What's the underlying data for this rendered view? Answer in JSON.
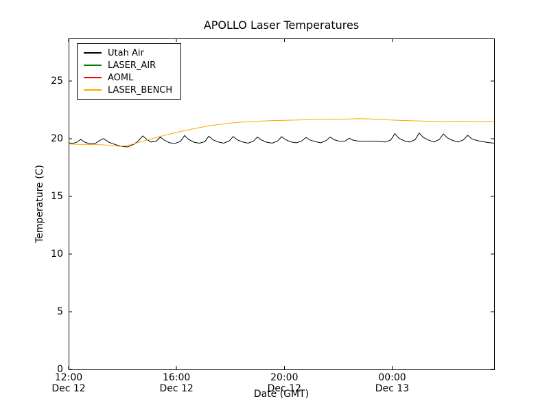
{
  "chart_data": {
    "type": "line",
    "title": "APOLLO Laser Temperatures",
    "xlabel": "Date (GMT)",
    "ylabel": "Temperature (C)",
    "x_unit": "hours since Dec 12 12:00 GMT",
    "xlim": [
      0,
      15.78
    ],
    "ylim": [
      0,
      28.7
    ],
    "grid": false,
    "legend_position": "upper left",
    "background_color": "#ffffff",
    "axes_color": "#000000",
    "y_ticks": [
      0,
      5,
      10,
      15,
      20,
      25
    ],
    "x_ticks": [
      {
        "value": 0,
        "label_line1": "12:00",
        "label_line2": "Dec 12"
      },
      {
        "value": 4,
        "label_line1": "16:00",
        "label_line2": "Dec 12"
      },
      {
        "value": 8,
        "label_line1": "20:00",
        "label_line2": "Dec 12"
      },
      {
        "value": 12,
        "label_line1": "00:00",
        "label_line2": "Dec 13"
      }
    ],
    "series": [
      {
        "name": "Utah Air",
        "color": "#000000",
        "visible_in_plot": true,
        "points": [
          [
            0.0,
            19.65
          ],
          [
            0.15,
            19.6
          ],
          [
            0.3,
            19.7
          ],
          [
            0.45,
            19.95
          ],
          [
            0.6,
            19.7
          ],
          [
            0.8,
            19.55
          ],
          [
            1.0,
            19.62
          ],
          [
            1.15,
            19.85
          ],
          [
            1.3,
            20.02
          ],
          [
            1.45,
            19.75
          ],
          [
            1.6,
            19.6
          ],
          [
            1.8,
            19.45
          ],
          [
            2.0,
            19.32
          ],
          [
            2.2,
            19.3
          ],
          [
            2.4,
            19.5
          ],
          [
            2.6,
            19.85
          ],
          [
            2.75,
            20.25
          ],
          [
            2.9,
            19.95
          ],
          [
            3.05,
            19.72
          ],
          [
            3.25,
            19.8
          ],
          [
            3.4,
            20.15
          ],
          [
            3.55,
            19.88
          ],
          [
            3.75,
            19.65
          ],
          [
            3.95,
            19.6
          ],
          [
            4.15,
            19.78
          ],
          [
            4.3,
            20.28
          ],
          [
            4.45,
            19.95
          ],
          [
            4.65,
            19.7
          ],
          [
            4.85,
            19.62
          ],
          [
            5.05,
            19.75
          ],
          [
            5.2,
            20.22
          ],
          [
            5.35,
            19.92
          ],
          [
            5.55,
            19.72
          ],
          [
            5.75,
            19.62
          ],
          [
            5.95,
            19.8
          ],
          [
            6.1,
            20.2
          ],
          [
            6.25,
            19.92
          ],
          [
            6.45,
            19.72
          ],
          [
            6.65,
            19.62
          ],
          [
            6.85,
            19.78
          ],
          [
            7.0,
            20.15
          ],
          [
            7.15,
            19.9
          ],
          [
            7.35,
            19.7
          ],
          [
            7.55,
            19.62
          ],
          [
            7.75,
            19.8
          ],
          [
            7.9,
            20.18
          ],
          [
            8.05,
            19.92
          ],
          [
            8.25,
            19.72
          ],
          [
            8.45,
            19.65
          ],
          [
            8.65,
            19.82
          ],
          [
            8.8,
            20.12
          ],
          [
            8.95,
            19.9
          ],
          [
            9.15,
            19.75
          ],
          [
            9.35,
            19.65
          ],
          [
            9.55,
            19.85
          ],
          [
            9.7,
            20.15
          ],
          [
            9.85,
            19.92
          ],
          [
            10.05,
            19.78
          ],
          [
            10.25,
            19.8
          ],
          [
            10.4,
            20.05
          ],
          [
            10.55,
            19.88
          ],
          [
            10.75,
            19.8
          ],
          [
            10.95,
            19.8
          ],
          [
            11.15,
            19.78
          ],
          [
            11.35,
            19.8
          ],
          [
            11.55,
            19.76
          ],
          [
            11.75,
            19.72
          ],
          [
            11.95,
            19.9
          ],
          [
            12.1,
            20.45
          ],
          [
            12.25,
            20.05
          ],
          [
            12.45,
            19.82
          ],
          [
            12.65,
            19.72
          ],
          [
            12.85,
            19.92
          ],
          [
            13.0,
            20.5
          ],
          [
            13.15,
            20.12
          ],
          [
            13.35,
            19.88
          ],
          [
            13.55,
            19.72
          ],
          [
            13.75,
            19.95
          ],
          [
            13.9,
            20.42
          ],
          [
            14.05,
            20.08
          ],
          [
            14.25,
            19.85
          ],
          [
            14.45,
            19.72
          ],
          [
            14.65,
            19.92
          ],
          [
            14.8,
            20.3
          ],
          [
            14.95,
            20.0
          ],
          [
            15.15,
            19.85
          ],
          [
            15.35,
            19.75
          ],
          [
            15.55,
            19.68
          ],
          [
            15.78,
            19.62
          ]
        ]
      },
      {
        "name": "LASER_AIR",
        "color": "#008000",
        "visible_in_plot": false,
        "points": []
      },
      {
        "name": "AOML",
        "color": "#ff0000",
        "visible_in_plot": false,
        "points": []
      },
      {
        "name": "LASER_BENCH",
        "color": "#ffa500",
        "visible_in_plot": true,
        "points": [
          [
            0.0,
            19.55
          ],
          [
            0.4,
            19.52
          ],
          [
            0.8,
            19.5
          ],
          [
            1.2,
            19.48
          ],
          [
            1.6,
            19.42
          ],
          [
            1.9,
            19.35
          ],
          [
            2.1,
            19.38
          ],
          [
            2.4,
            19.55
          ],
          [
            2.7,
            19.75
          ],
          [
            3.0,
            19.95
          ],
          [
            3.3,
            20.15
          ],
          [
            3.6,
            20.32
          ],
          [
            4.0,
            20.55
          ],
          [
            4.4,
            20.75
          ],
          [
            4.8,
            20.95
          ],
          [
            5.2,
            21.12
          ],
          [
            5.6,
            21.25
          ],
          [
            6.0,
            21.36
          ],
          [
            6.4,
            21.44
          ],
          [
            6.8,
            21.5
          ],
          [
            7.2,
            21.54
          ],
          [
            7.6,
            21.58
          ],
          [
            8.0,
            21.6
          ],
          [
            8.5,
            21.63
          ],
          [
            9.0,
            21.66
          ],
          [
            9.5,
            21.68
          ],
          [
            10.0,
            21.7
          ],
          [
            10.5,
            21.73
          ],
          [
            10.8,
            21.75
          ],
          [
            11.2,
            21.72
          ],
          [
            11.6,
            21.67
          ],
          [
            12.0,
            21.62
          ],
          [
            12.5,
            21.58
          ],
          [
            13.0,
            21.55
          ],
          [
            13.5,
            21.52
          ],
          [
            14.0,
            21.5
          ],
          [
            14.5,
            21.52
          ],
          [
            15.0,
            21.5
          ],
          [
            15.4,
            21.48
          ],
          [
            15.78,
            21.5
          ]
        ]
      }
    ]
  }
}
